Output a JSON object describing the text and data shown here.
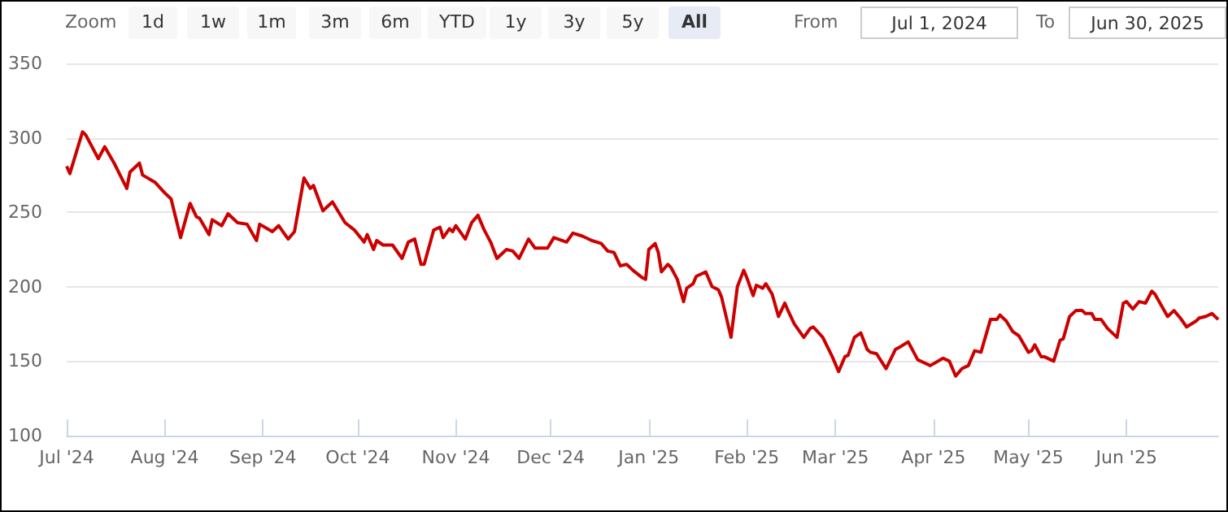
{
  "chart_data": {
    "type": "line",
    "annotations": [
      "Zoom",
      "1d",
      "1w",
      "1m",
      "3m",
      "6m",
      "YTD",
      "1y",
      "3y",
      "5y",
      "All",
      "From",
      "Jul 1, 2024",
      "To",
      "Jun 30, 2025"
    ],
    "x": [
      "2024-07-01",
      "2024-07-02",
      "2024-07-06",
      "2024-07-07",
      "2024-07-11",
      "2024-07-13",
      "2024-07-16",
      "2024-07-20",
      "2024-07-21",
      "2024-07-24",
      "2024-07-25",
      "2024-07-29",
      "2024-08-01",
      "2024-08-03",
      "2024-08-06",
      "2024-08-09",
      "2024-08-11",
      "2024-08-12",
      "2024-08-15",
      "2024-08-16",
      "2024-08-19",
      "2024-08-21",
      "2024-08-24",
      "2024-08-27",
      "2024-08-30",
      "2024-08-31",
      "2024-09-04",
      "2024-09-06",
      "2024-09-09",
      "2024-09-11",
      "2024-09-14",
      "2024-09-16",
      "2024-09-17",
      "2024-09-20",
      "2024-09-23",
      "2024-09-25",
      "2024-09-27",
      "2024-09-30",
      "2024-10-03",
      "2024-10-04",
      "2024-10-06",
      "2024-10-07",
      "2024-10-09",
      "2024-10-12",
      "2024-10-15",
      "2024-10-17",
      "2024-10-19",
      "2024-10-21",
      "2024-10-22",
      "2024-10-25",
      "2024-10-27",
      "2024-10-28",
      "2024-10-30",
      "2024-10-31",
      "2024-11-01",
      "2024-11-03",
      "2024-11-04",
      "2024-11-06",
      "2024-11-08",
      "2024-11-10",
      "2024-11-12",
      "2024-11-14",
      "2024-11-17",
      "2024-11-19",
      "2024-11-21",
      "2024-11-24",
      "2024-11-26",
      "2024-11-30",
      "2024-12-02",
      "2024-12-06",
      "2024-12-08",
      "2024-12-11",
      "2024-12-14",
      "2024-12-17",
      "2024-12-19",
      "2024-12-21",
      "2024-12-23",
      "2024-12-25",
      "2024-12-27",
      "2024-12-30",
      "2024-12-31",
      "2025-01-01",
      "2025-01-03",
      "2025-01-04",
      "2025-01-05",
      "2025-01-07",
      "2025-01-08",
      "2025-01-10",
      "2025-01-12",
      "2025-01-13",
      "2025-01-15",
      "2025-01-16",
      "2025-01-19",
      "2025-01-21",
      "2025-01-23",
      "2025-01-24",
      "2025-01-27",
      "2025-01-29",
      "2025-01-31",
      "2025-02-01",
      "2025-02-03",
      "2025-02-04",
      "2025-02-06",
      "2025-02-07",
      "2025-02-09",
      "2025-02-11",
      "2025-02-13",
      "2025-02-14",
      "2025-02-16",
      "2025-02-19",
      "2025-02-21",
      "2025-02-22",
      "2025-02-25",
      "2025-02-28",
      "2025-03-02",
      "2025-03-04",
      "2025-03-05",
      "2025-03-07",
      "2025-03-09",
      "2025-03-11",
      "2025-03-12",
      "2025-03-14",
      "2025-03-17",
      "2025-03-20",
      "2025-03-21",
      "2025-03-24",
      "2025-03-27",
      "2025-03-29",
      "2025-03-31",
      "2025-04-04",
      "2025-04-06",
      "2025-04-08",
      "2025-04-10",
      "2025-04-12",
      "2025-04-14",
      "2025-04-16",
      "2025-04-19",
      "2025-04-21",
      "2025-04-22",
      "2025-04-24",
      "2025-04-26",
      "2025-04-28",
      "2025-05-01",
      "2025-05-02",
      "2025-05-03",
      "2025-05-05",
      "2025-05-06",
      "2025-05-09",
      "2025-05-11",
      "2025-05-12",
      "2025-05-14",
      "2025-05-16",
      "2025-05-18",
      "2025-05-19",
      "2025-05-21",
      "2025-05-22",
      "2025-05-24",
      "2025-05-26",
      "2025-05-29",
      "2025-05-31",
      "2025-06-01",
      "2025-06-03",
      "2025-06-05",
      "2025-06-07",
      "2025-06-09",
      "2025-06-10",
      "2025-06-14",
      "2025-06-16",
      "2025-06-18",
      "2025-06-20",
      "2025-06-23",
      "2025-06-24",
      "2025-06-26",
      "2025-06-28",
      "2025-06-30"
    ],
    "series": [
      {
        "color": "#cc0000",
        "values": [
          281,
          276,
          304,
          302,
          286,
          294,
          283,
          266,
          277,
          283,
          275,
          270,
          263,
          259,
          233,
          256,
          247,
          246,
          235,
          245,
          241,
          249,
          243,
          242,
          231,
          242,
          237,
          241,
          232,
          237,
          273,
          266,
          268,
          251,
          257,
          250,
          243,
          238,
          230,
          235,
          225,
          231,
          228,
          228,
          219,
          230,
          232,
          215,
          215,
          238,
          240,
          233,
          239,
          237,
          241,
          235,
          232,
          243,
          248,
          238,
          230,
          219,
          225,
          224,
          219,
          232,
          226,
          226,
          233,
          230,
          236,
          234,
          231,
          229,
          224,
          223,
          214,
          215,
          211,
          206,
          205,
          225,
          229,
          223,
          210,
          215,
          213,
          205,
          190,
          199,
          202,
          207,
          210,
          200,
          198,
          193,
          166,
          200,
          211,
          206,
          194,
          201,
          199,
          202,
          195,
          180,
          189,
          184,
          175,
          166,
          172,
          173,
          166,
          153,
          143,
          153,
          154,
          166,
          169,
          158,
          156,
          155,
          145,
          158,
          159,
          163,
          151,
          149,
          147,
          152,
          150,
          140,
          145,
          147,
          157,
          156,
          178,
          178,
          181,
          177,
          170,
          167,
          156,
          157,
          161,
          153,
          153,
          150,
          164,
          165,
          180,
          184,
          184,
          182,
          182,
          178,
          178,
          172,
          166,
          189,
          190,
          185,
          190,
          189,
          197,
          195,
          180,
          184,
          179,
          173,
          177,
          179,
          180,
          182,
          178
        ]
      }
    ],
    "xlim": [
      "2024-07-01",
      "2025-06-30"
    ],
    "xticks": [
      {
        "value": "2024-07-01",
        "label": "Jul '24"
      },
      {
        "value": "2024-08-01",
        "label": "Aug '24"
      },
      {
        "value": "2024-09-01",
        "label": "Sep '24"
      },
      {
        "value": "2024-10-01",
        "label": "Oct '24"
      },
      {
        "value": "2024-11-01",
        "label": "Nov '24"
      },
      {
        "value": "2024-12-01",
        "label": "Dec '24"
      },
      {
        "value": "2025-01-01",
        "label": "Jan '25"
      },
      {
        "value": "2025-02-01",
        "label": "Feb '25"
      },
      {
        "value": "2025-03-01",
        "label": "Mar '25"
      },
      {
        "value": "2025-04-01",
        "label": "Apr '25"
      },
      {
        "value": "2025-05-01",
        "label": "May '25"
      },
      {
        "value": "2025-06-01",
        "label": "Jun '25"
      }
    ],
    "ylim": [
      100,
      350
    ],
    "yticks": [
      100,
      150,
      200,
      250,
      300,
      350
    ],
    "grid": "y"
  }
}
